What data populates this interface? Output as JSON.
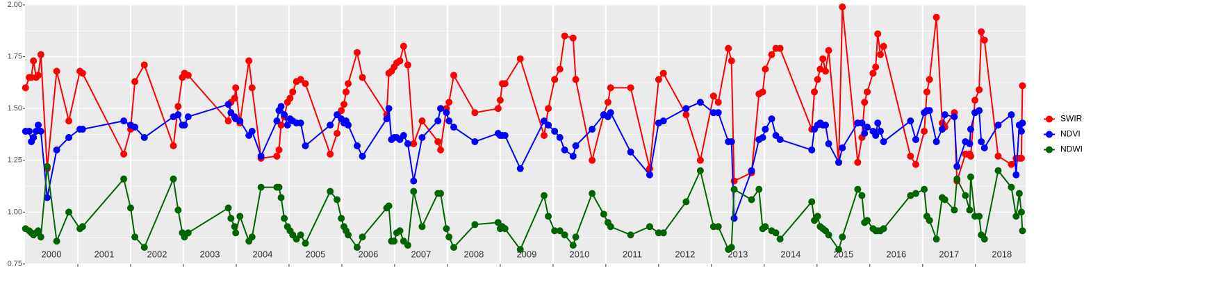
{
  "chart_data": {
    "type": "line",
    "x": [
      2000.01,
      2000.08,
      2000.12,
      2000.16,
      2000.21,
      2000.25,
      2000.3,
      2000.42,
      2000.6,
      2000.83,
      2001.04,
      2001.09,
      2001.87,
      2002.0,
      2002.08,
      2002.26,
      2002.81,
      2002.9,
      2002.98,
      2003.02,
      2003.09,
      2003.85,
      2003.9,
      2003.97,
      2003.99,
      2004.07,
      2004.24,
      2004.3,
      2004.47,
      2004.77,
      2004.81,
      2004.85,
      2004.91,
      2004.97,
      2005.02,
      2005.07,
      2005.14,
      2005.22,
      2005.31,
      2005.78,
      2005.91,
      2005.99,
      2006.04,
      2006.08,
      2006.12,
      2006.29,
      2006.39,
      2006.85,
      2006.89,
      2006.94,
      2006.99,
      2007.04,
      2007.1,
      2007.17,
      2007.25,
      2007.36,
      2007.52,
      2007.82,
      2007.87,
      2007.98,
      2008.03,
      2008.12,
      2008.52,
      2008.96,
      2009.0,
      2009.04,
      2009.09,
      2009.38,
      2009.83,
      2009.91,
      2010.03,
      2010.13,
      2010.22,
      2010.38,
      2010.43,
      2010.74,
      2010.96,
      2011.04,
      2011.09,
      2011.47,
      2011.83,
      2012.0,
      2012.09,
      2012.52,
      2012.79,
      2013.04,
      2013.13,
      2013.32,
      2013.38,
      2013.43,
      2013.76,
      2013.9,
      2013.97,
      2014.02,
      2014.14,
      2014.22,
      2014.3,
      2014.9,
      2014.95,
      2015.01,
      2015.06,
      2015.11,
      2015.16,
      2015.22,
      2015.41,
      2015.48,
      2015.77,
      2015.85,
      2015.9,
      2015.95,
      2016.06,
      2016.11,
      2016.15,
      2016.2,
      2016.26,
      2016.77,
      2016.87,
      2017.03,
      2017.08,
      2017.13,
      2017.26,
      2017.37,
      2017.42,
      2017.6,
      2017.65,
      2017.81,
      2017.89,
      2017.91,
      2017.99,
      2018.07,
      2018.11,
      2018.17,
      2018.43,
      2018.68,
      2018.77,
      2018.83,
      2018.87,
      2018.89
    ],
    "series": [
      {
        "name": "SWIR",
        "color": "#ff0000",
        "values": [
          1.6,
          1.65,
          1.65,
          1.73,
          1.65,
          1.66,
          1.76,
          1.21,
          1.68,
          1.44,
          1.68,
          1.67,
          1.28,
          1.4,
          1.63,
          1.71,
          1.32,
          1.51,
          1.65,
          1.67,
          1.66,
          1.44,
          1.53,
          1.55,
          1.6,
          1.43,
          1.73,
          1.6,
          1.26,
          1.27,
          1.3,
          1.42,
          1.46,
          1.53,
          1.55,
          1.58,
          1.63,
          1.64,
          1.62,
          1.28,
          1.38,
          1.49,
          1.52,
          1.58,
          1.62,
          1.77,
          1.65,
          1.47,
          1.67,
          1.68,
          1.7,
          1.72,
          1.73,
          1.8,
          1.71,
          1.33,
          1.44,
          1.34,
          1.3,
          1.5,
          1.53,
          1.66,
          1.48,
          1.5,
          1.54,
          1.62,
          1.62,
          1.74,
          1.37,
          1.5,
          1.64,
          1.69,
          1.85,
          1.84,
          1.64,
          1.25,
          1.47,
          1.53,
          1.6,
          1.6,
          1.21,
          1.64,
          1.67,
          1.47,
          1.25,
          1.56,
          1.53,
          1.79,
          1.73,
          1.15,
          1.19,
          1.57,
          1.58,
          1.69,
          1.76,
          1.79,
          1.79,
          1.4,
          1.58,
          1.64,
          1.69,
          1.74,
          1.68,
          1.78,
          1.24,
          1.99,
          1.24,
          1.36,
          1.53,
          1.58,
          1.67,
          1.7,
          1.86,
          1.76,
          1.8,
          1.27,
          1.23,
          1.39,
          1.58,
          1.64,
          1.94,
          1.43,
          1.41,
          1.48,
          1.15,
          1.28,
          1.28,
          1.27,
          1.54,
          1.59,
          1.87,
          1.83,
          1.27,
          1.23,
          1.26,
          1.26,
          1.26,
          1.61
        ]
      },
      {
        "name": "NDVI",
        "color": "#0000ff",
        "values": [
          1.39,
          1.39,
          1.34,
          1.36,
          1.39,
          1.42,
          1.39,
          1.07,
          1.3,
          1.36,
          1.4,
          1.4,
          1.44,
          1.42,
          1.41,
          1.36,
          1.46,
          1.47,
          1.42,
          1.42,
          1.46,
          1.52,
          1.48,
          1.46,
          1.45,
          1.44,
          1.37,
          1.39,
          1.27,
          1.44,
          1.49,
          1.51,
          1.47,
          1.42,
          1.45,
          1.44,
          1.43,
          1.43,
          1.32,
          1.42,
          1.47,
          1.45,
          1.43,
          1.44,
          1.42,
          1.32,
          1.27,
          1.45,
          1.5,
          1.35,
          1.36,
          1.36,
          1.35,
          1.37,
          1.33,
          1.15,
          1.36,
          1.44,
          1.5,
          1.48,
          1.44,
          1.41,
          1.34,
          1.38,
          1.37,
          1.37,
          1.37,
          1.21,
          1.44,
          1.42,
          1.39,
          1.36,
          1.3,
          1.27,
          1.32,
          1.4,
          1.47,
          1.46,
          1.48,
          1.29,
          1.18,
          1.43,
          1.44,
          1.5,
          1.53,
          1.48,
          1.48,
          1.34,
          1.34,
          0.97,
          1.2,
          1.35,
          1.36,
          1.4,
          1.45,
          1.37,
          1.35,
          1.3,
          1.4,
          1.42,
          1.43,
          1.42,
          1.42,
          1.33,
          1.24,
          1.31,
          1.43,
          1.43,
          1.38,
          1.41,
          1.39,
          1.37,
          1.43,
          1.39,
          1.34,
          1.44,
          1.35,
          1.48,
          1.49,
          1.49,
          1.34,
          1.4,
          1.47,
          1.46,
          1.22,
          1.34,
          1.33,
          1.4,
          1.48,
          1.49,
          1.34,
          1.31,
          1.42,
          1.47,
          1.18,
          1.42,
          1.39,
          1.43
        ]
      },
      {
        "name": "NDWI",
        "color": "#006400",
        "values": [
          0.92,
          0.91,
          0.9,
          0.89,
          0.9,
          0.91,
          0.88,
          1.22,
          0.86,
          1.0,
          0.92,
          0.93,
          1.16,
          1.02,
          0.88,
          0.83,
          1.16,
          1.01,
          0.9,
          0.88,
          0.9,
          1.02,
          0.97,
          0.93,
          0.9,
          0.98,
          0.86,
          0.88,
          1.12,
          1.12,
          1.12,
          1.07,
          0.97,
          0.93,
          0.91,
          0.89,
          0.87,
          0.89,
          0.85,
          1.1,
          1.06,
          0.97,
          0.93,
          0.91,
          0.89,
          0.83,
          0.88,
          1.02,
          1.03,
          0.86,
          0.86,
          0.9,
          0.91,
          0.86,
          0.84,
          1.1,
          0.93,
          1.09,
          1.09,
          0.92,
          0.88,
          0.83,
          0.94,
          0.95,
          0.92,
          0.93,
          0.92,
          0.82,
          1.08,
          0.98,
          0.91,
          0.91,
          0.89,
          0.84,
          0.88,
          1.09,
          0.99,
          0.95,
          0.93,
          0.89,
          0.93,
          0.9,
          0.9,
          1.05,
          1.2,
          0.93,
          0.93,
          0.82,
          0.83,
          1.11,
          1.06,
          1.11,
          0.92,
          0.93,
          0.91,
          0.9,
          0.87,
          1.05,
          0.96,
          0.98,
          0.93,
          0.92,
          0.91,
          0.89,
          0.82,
          0.88,
          1.11,
          1.08,
          0.95,
          0.96,
          0.92,
          0.91,
          0.91,
          0.91,
          0.92,
          1.08,
          1.09,
          1.11,
          0.98,
          0.96,
          0.87,
          1.07,
          1.06,
          1.01,
          1.16,
          1.08,
          1.01,
          1.17,
          0.98,
          0.98,
          0.89,
          0.87,
          1.2,
          1.12,
          0.98,
          1.09,
          1.0,
          0.91
        ]
      }
    ],
    "xlim": [
      2000,
      2018.95
    ],
    "xticks": [
      {
        "value": 2000.5,
        "label": "2000"
      },
      {
        "value": 2001.5,
        "label": "2001"
      },
      {
        "value": 2002.5,
        "label": "2002"
      },
      {
        "value": 2003.5,
        "label": "2003"
      },
      {
        "value": 2004.5,
        "label": "2004"
      },
      {
        "value": 2005.5,
        "label": "2005"
      },
      {
        "value": 2006.5,
        "label": "2006"
      },
      {
        "value": 2007.5,
        "label": "2007"
      },
      {
        "value": 2008.5,
        "label": "2008"
      },
      {
        "value": 2009.5,
        "label": "2009"
      },
      {
        "value": 2010.5,
        "label": "2010"
      },
      {
        "value": 2011.5,
        "label": "2011"
      },
      {
        "value": 2012.5,
        "label": "2012"
      },
      {
        "value": 2013.5,
        "label": "2013"
      },
      {
        "value": 2014.5,
        "label": "2014"
      },
      {
        "value": 2015.5,
        "label": "2015"
      },
      {
        "value": 2016.5,
        "label": "2016"
      },
      {
        "value": 2017.5,
        "label": "2017"
      },
      {
        "value": 2018.5,
        "label": "2018"
      }
    ],
    "year_lines": [
      2001,
      2002,
      2003,
      2004,
      2005,
      2006,
      2007,
      2008,
      2009,
      2010,
      2011,
      2012,
      2013,
      2014,
      2015,
      2016,
      2017,
      2018
    ],
    "ylim": [
      0.75,
      2.0
    ],
    "yticks": [
      {
        "value": 0.75,
        "label": "0.75"
      },
      {
        "value": 1.0,
        "label": "1.00"
      },
      {
        "value": 1.25,
        "label": "1.25"
      },
      {
        "value": 1.5,
        "label": "1.50"
      },
      {
        "value": 1.75,
        "label": "1.75"
      },
      {
        "value": 2.0,
        "label": "2.00"
      }
    ],
    "grid": true,
    "legend": "right"
  }
}
